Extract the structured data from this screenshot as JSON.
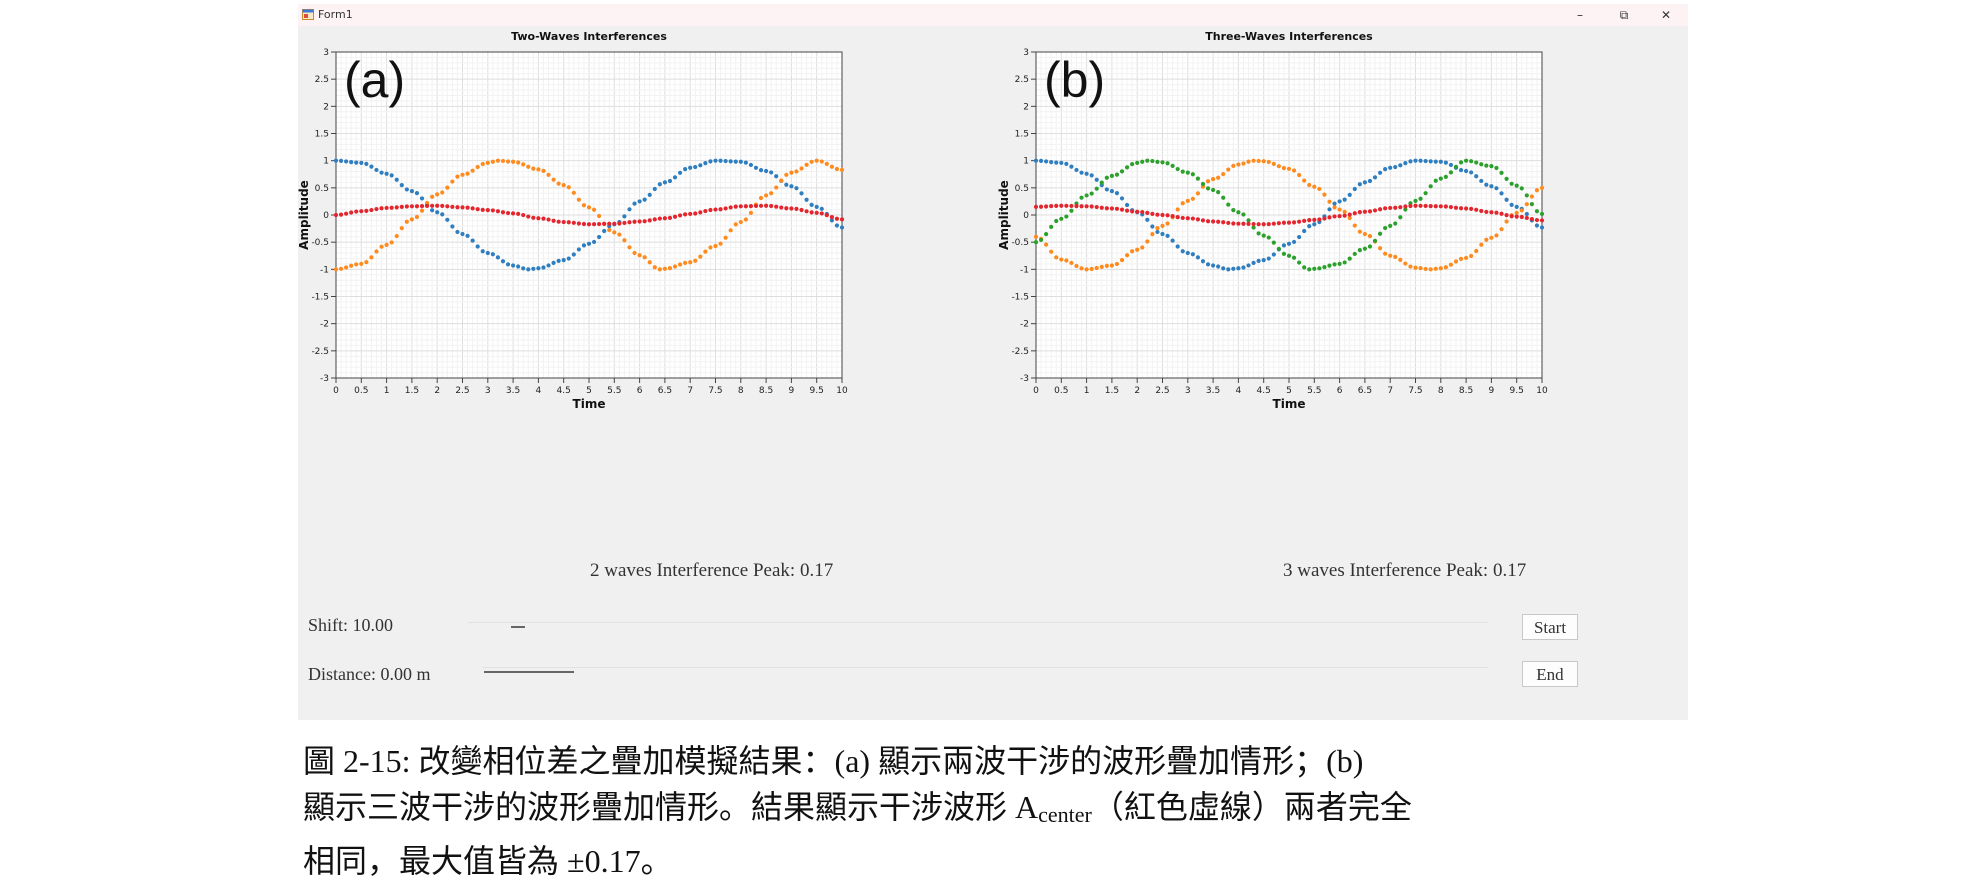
{
  "window": {
    "title": "Form1",
    "minimize_glyph": "–",
    "maximize_glyph": "⧉",
    "close_glyph": "✕",
    "icon": "app-form-icon"
  },
  "colors": {
    "wave1": "#2f7ebf",
    "wave2": "#ff8a1e",
    "wave3": "#2ca02c",
    "sum": "#e3262d",
    "grid": "#e6e6e6"
  },
  "chart_data": [
    {
      "type": "scatter",
      "title": "Two-Waves Interferences",
      "panel_label": "(a)",
      "xlabel": "Time",
      "ylabel": "Amplitude",
      "xlim": [
        0,
        10
      ],
      "ylim": [
        -3,
        3
      ],
      "x_ticks": [
        "0",
        "0.5",
        "1",
        "1.5",
        "2",
        "2.5",
        "3",
        "3.5",
        "4",
        "4.5",
        "5",
        "5.5",
        "6",
        "6.5",
        "7",
        "7.5",
        "8",
        "8.5",
        "9",
        "9.5",
        "10"
      ],
      "y_ticks": [
        "3",
        "2.5",
        "2",
        "1.5",
        "1",
        "0.5",
        "0",
        "-0.5",
        "-1",
        "-1.5",
        "-2",
        "-2.5",
        "-3"
      ],
      "grid": true,
      "sample_step": 0.1,
      "series": [
        {
          "color": "#2f7ebf",
          "points": [
            [
              0,
              1.0
            ],
            [
              0.5,
              0.96
            ],
            [
              1,
              0.76
            ],
            [
              1.5,
              0.44
            ],
            [
              2,
              0.05
            ],
            [
              2.5,
              -0.35
            ],
            [
              3,
              -0.7
            ],
            [
              3.5,
              -0.93
            ],
            [
              3.8,
              -1.0
            ],
            [
              4,
              -0.98
            ],
            [
              4.5,
              -0.83
            ],
            [
              5,
              -0.53
            ],
            [
              5.5,
              -0.17
            ],
            [
              6,
              0.25
            ],
            [
              6.5,
              0.6
            ],
            [
              7,
              0.87
            ],
            [
              7.5,
              1.0
            ],
            [
              8,
              0.98
            ],
            [
              8.5,
              0.81
            ],
            [
              9,
              0.53
            ],
            [
              9.5,
              0.15
            ],
            [
              10,
              -0.23
            ]
          ]
        },
        {
          "color": "#ff8a1e",
          "points": [
            [
              0,
              -1.0
            ],
            [
              0.5,
              -0.9
            ],
            [
              1,
              -0.55
            ],
            [
              1.5,
              -0.08
            ],
            [
              2,
              0.38
            ],
            [
              2.5,
              0.74
            ],
            [
              3,
              0.96
            ],
            [
              3.2,
              1.0
            ],
            [
              3.5,
              0.98
            ],
            [
              4,
              0.84
            ],
            [
              4.5,
              0.55
            ],
            [
              5,
              0.14
            ],
            [
              5.5,
              -0.32
            ],
            [
              6,
              -0.74
            ],
            [
              6.4,
              -1.0
            ],
            [
              6.5,
              -0.99
            ],
            [
              7,
              -0.87
            ],
            [
              7.5,
              -0.57
            ],
            [
              8,
              -0.13
            ],
            [
              8.5,
              0.36
            ],
            [
              9,
              0.78
            ],
            [
              9.5,
              1.0
            ],
            [
              10,
              0.83
            ]
          ]
        },
        {
          "color": "#e3262d",
          "points": [
            [
              0,
              0.0
            ],
            [
              0.5,
              0.07
            ],
            [
              1,
              0.13
            ],
            [
              1.5,
              0.16
            ],
            [
              2,
              0.17
            ],
            [
              2.5,
              0.14
            ],
            [
              3,
              0.09
            ],
            [
              3.5,
              0.03
            ],
            [
              4,
              -0.06
            ],
            [
              4.5,
              -0.13
            ],
            [
              5,
              -0.17
            ],
            [
              5.5,
              -0.16
            ],
            [
              6,
              -0.12
            ],
            [
              6.5,
              -0.06
            ],
            [
              7,
              0.02
            ],
            [
              7.5,
              0.1
            ],
            [
              8,
              0.16
            ],
            [
              8.5,
              0.17
            ],
            [
              9,
              0.12
            ],
            [
              9.5,
              0.04
            ],
            [
              10,
              -0.08
            ]
          ]
        }
      ]
    },
    {
      "type": "scatter",
      "title": "Three-Waves Interferences",
      "panel_label": "(b)",
      "xlabel": "Time",
      "ylabel": "Amplitude",
      "xlim": [
        0,
        10
      ],
      "ylim": [
        -3,
        3
      ],
      "x_ticks": [
        "0",
        "0.5",
        "1",
        "1.5",
        "2",
        "2.5",
        "3",
        "3.5",
        "4",
        "4.5",
        "5",
        "5.5",
        "6",
        "6.5",
        "7",
        "7.5",
        "8",
        "8.5",
        "9",
        "9.5",
        "10"
      ],
      "y_ticks": [
        "3",
        "2.5",
        "2",
        "1.5",
        "1",
        "0.5",
        "0",
        "-0.5",
        "-1",
        "-1.5",
        "-2",
        "-2.5",
        "-3"
      ],
      "grid": true,
      "sample_step": 0.1,
      "series": [
        {
          "color": "#2f7ebf",
          "points": [
            [
              0,
              1.0
            ],
            [
              0.5,
              0.96
            ],
            [
              1,
              0.76
            ],
            [
              1.5,
              0.44
            ],
            [
              2,
              0.05
            ],
            [
              2.5,
              -0.35
            ],
            [
              3,
              -0.7
            ],
            [
              3.5,
              -0.93
            ],
            [
              3.8,
              -1.0
            ],
            [
              4,
              -0.98
            ],
            [
              4.5,
              -0.83
            ],
            [
              5,
              -0.53
            ],
            [
              5.5,
              -0.17
            ],
            [
              6,
              0.25
            ],
            [
              6.5,
              0.6
            ],
            [
              7,
              0.87
            ],
            [
              7.5,
              1.0
            ],
            [
              8,
              0.98
            ],
            [
              8.5,
              0.81
            ],
            [
              9,
              0.53
            ],
            [
              9.5,
              0.15
            ],
            [
              10,
              -0.23
            ]
          ]
        },
        {
          "color": "#ff8a1e",
          "points": [
            [
              0,
              -0.4
            ],
            [
              0.5,
              -0.82
            ],
            [
              1,
              -1.0
            ],
            [
              1.5,
              -0.93
            ],
            [
              2,
              -0.64
            ],
            [
              2.5,
              -0.2
            ],
            [
              3,
              0.26
            ],
            [
              3.5,
              0.66
            ],
            [
              4,
              0.93
            ],
            [
              4.3,
              1.0
            ],
            [
              4.5,
              0.99
            ],
            [
              5,
              0.85
            ],
            [
              5.5,
              0.52
            ],
            [
              6,
              0.1
            ],
            [
              6.5,
              -0.35
            ],
            [
              7,
              -0.75
            ],
            [
              7.5,
              -0.97
            ],
            [
              7.8,
              -1.0
            ],
            [
              8,
              -0.98
            ],
            [
              8.5,
              -0.79
            ],
            [
              9,
              -0.42
            ],
            [
              9.5,
              0.04
            ],
            [
              10,
              0.5
            ]
          ]
        },
        {
          "color": "#2ca02c",
          "points": [
            [
              0,
              -0.5
            ],
            [
              0.5,
              -0.07
            ],
            [
              1,
              0.36
            ],
            [
              1.5,
              0.72
            ],
            [
              2,
              0.96
            ],
            [
              2.2,
              1.0
            ],
            [
              2.5,
              0.97
            ],
            [
              3,
              0.78
            ],
            [
              3.5,
              0.46
            ],
            [
              4,
              0.05
            ],
            [
              4.5,
              -0.38
            ],
            [
              5,
              -0.75
            ],
            [
              5.4,
              -1.0
            ],
            [
              5.5,
              -0.99
            ],
            [
              6,
              -0.9
            ],
            [
              6.5,
              -0.62
            ],
            [
              7,
              -0.2
            ],
            [
              7.5,
              0.26
            ],
            [
              8,
              0.67
            ],
            [
              8.5,
              1.0
            ],
            [
              9,
              0.9
            ],
            [
              9.5,
              0.54
            ],
            [
              10,
              0.02
            ]
          ]
        },
        {
          "color": "#e3262d",
          "points": [
            [
              0,
              0.15
            ],
            [
              0.5,
              0.17
            ],
            [
              1,
              0.16
            ],
            [
              1.5,
              0.12
            ],
            [
              2,
              0.06
            ],
            [
              2.5,
              0.0
            ],
            [
              3,
              -0.06
            ],
            [
              3.5,
              -0.12
            ],
            [
              4,
              -0.16
            ],
            [
              4.5,
              -0.17
            ],
            [
              5,
              -0.14
            ],
            [
              5.5,
              -0.09
            ],
            [
              6,
              -0.02
            ],
            [
              6.5,
              0.06
            ],
            [
              7,
              0.13
            ],
            [
              7.5,
              0.17
            ],
            [
              8,
              0.16
            ],
            [
              8.5,
              0.12
            ],
            [
              9,
              0.05
            ],
            [
              9.5,
              -0.03
            ],
            [
              10,
              -0.1
            ]
          ]
        }
      ]
    }
  ],
  "results": {
    "two_waves_peak": "2 waves Interference Peak: 0.17",
    "three_waves_peak": "3 waves Interference Peak: 0.17"
  },
  "controls": {
    "shift_label": "Shift: 10.00",
    "shift_value": 10.0,
    "distance_label": "Distance: 0.00 m",
    "distance_value": 0.0,
    "start_label": "Start",
    "end_label": "End"
  },
  "caption": {
    "part1": "圖 2-15: 改變相位差之疊加模擬結果：(a) 顯示兩波干涉的波形疊加情形；(b)",
    "part2": "顯示三波干涉的波形疊加情形。結果顯示干涉波形 A",
    "sub": "center",
    "part3": "（紅色虛線）兩者完全",
    "part4": "相同，最大值皆為 ±0.17。"
  }
}
